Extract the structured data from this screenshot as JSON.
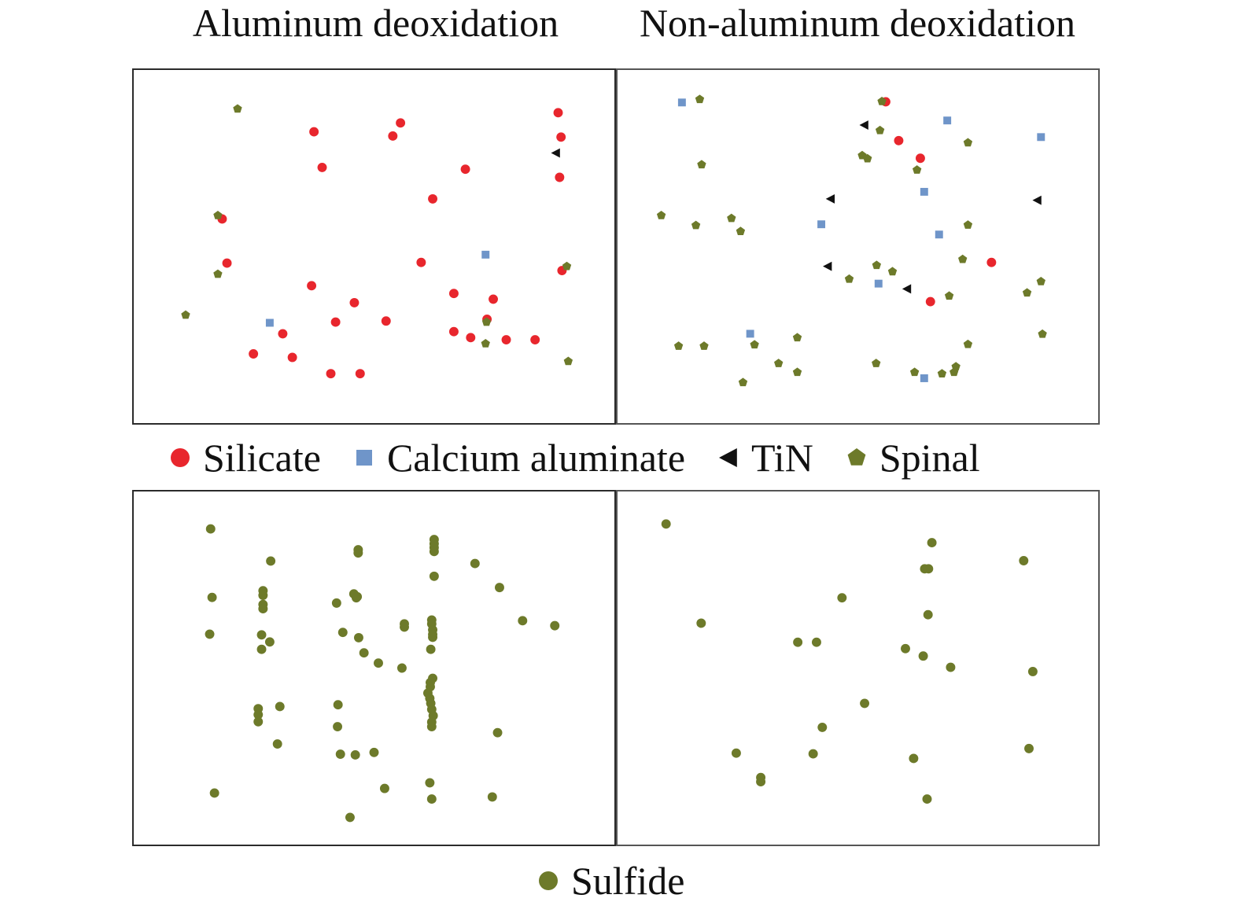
{
  "column_titles": {
    "left": "Aluminum deoxidation",
    "right": "Non-aluminum deoxidation"
  },
  "colors": {
    "silicate": "#e8262d",
    "calcium_aluminate": "#6f95c9",
    "tin": "#111111",
    "spinal": "#6d7a2a",
    "sulfide": "#6d7a2a"
  },
  "legend_top": [
    {
      "key": "silicate",
      "label": "Silicate",
      "shape": "circle"
    },
    {
      "key": "calcium_aluminate",
      "label": "Calcium aluminate",
      "shape": "square"
    },
    {
      "key": "tin",
      "label": "TiN",
      "shape": "triangle-left"
    },
    {
      "key": "spinal",
      "label": "Spinal",
      "shape": "pentagon"
    }
  ],
  "legend_bottom": [
    {
      "key": "sulfide",
      "label": "Sulfide",
      "shape": "circle"
    }
  ],
  "chart_data": [
    {
      "type": "scatter",
      "title": "Aluminum deoxidation",
      "xlim": [
        0,
        100
      ],
      "ylim": [
        0,
        100
      ],
      "grid": false,
      "axes_ticks": false,
      "series": [
        {
          "name": "Silicate",
          "key": "silicate",
          "points": [
            [
              37.5,
              17.5
            ],
            [
              39.2,
              27.6
            ],
            [
              55.5,
              15.0
            ],
            [
              53.9,
              18.7
            ],
            [
              69.0,
              28.1
            ],
            [
              62.2,
              36.5
            ],
            [
              88.3,
              12.1
            ],
            [
              88.9,
              19.0
            ],
            [
              88.6,
              30.4
            ],
            [
              18.4,
              42.2
            ],
            [
              19.4,
              54.7
            ],
            [
              37.0,
              61.1
            ],
            [
              59.8,
              54.5
            ],
            [
              66.6,
              63.3
            ],
            [
              89.1,
              56.8
            ],
            [
              45.9,
              65.9
            ],
            [
              42.0,
              71.4
            ],
            [
              52.5,
              71.1
            ],
            [
              31.0,
              74.7
            ],
            [
              24.9,
              80.4
            ],
            [
              33.0,
              81.4
            ],
            [
              41.0,
              86.0
            ],
            [
              47.1,
              86.0
            ],
            [
              66.6,
              74.1
            ],
            [
              73.5,
              70.6
            ],
            [
              74.8,
              64.9
            ],
            [
              70.1,
              75.8
            ],
            [
              77.5,
              76.4
            ],
            [
              83.5,
              76.4
            ]
          ]
        },
        {
          "name": "Calcium aluminate",
          "key": "calcium_aluminate",
          "points": [
            [
              73.2,
              52.3
            ],
            [
              28.3,
              71.6
            ]
          ]
        },
        {
          "name": "TiN",
          "key": "tin",
          "points": [
            [
              87.8,
              23.5
            ]
          ]
        },
        {
          "name": "Spinal",
          "key": "spinal",
          "points": [
            [
              21.6,
              11.0
            ],
            [
              17.5,
              41.2
            ],
            [
              17.5,
              57.8
            ],
            [
              10.8,
              69.4
            ],
            [
              90.1,
              55.6
            ],
            [
              73.4,
              71.4
            ],
            [
              73.2,
              77.5
            ],
            [
              90.4,
              82.5
            ]
          ]
        }
      ]
    },
    {
      "type": "scatter",
      "title": "Non-aluminum deoxidation",
      "xlim": [
        0,
        100
      ],
      "ylim": [
        0,
        100
      ],
      "grid": false,
      "axes_ticks": false,
      "series": [
        {
          "name": "Silicate",
          "key": "silicate",
          "points": [
            [
              55.8,
              9.0
            ],
            [
              58.5,
              20.0
            ],
            [
              63.0,
              25.0
            ],
            [
              77.8,
              54.5
            ],
            [
              65.1,
              65.6
            ]
          ]
        },
        {
          "name": "Calcium aluminate",
          "key": "calcium_aluminate",
          "points": [
            [
              13.4,
              9.2
            ],
            [
              68.6,
              14.3
            ],
            [
              88.1,
              19.0
            ],
            [
              63.8,
              34.5
            ],
            [
              42.4,
              43.7
            ],
            [
              66.9,
              46.6
            ],
            [
              54.3,
              60.5
            ],
            [
              27.6,
              74.7
            ],
            [
              63.8,
              87.3
            ]
          ]
        },
        {
          "name": "TiN",
          "key": "tin",
          "points": [
            [
              51.3,
              15.6
            ],
            [
              44.3,
              36.5
            ],
            [
              43.7,
              55.6
            ],
            [
              60.2,
              62.0
            ],
            [
              87.3,
              36.9
            ]
          ]
        },
        {
          "name": "Spinal",
          "key": "spinal",
          "points": [
            [
              17.1,
              8.3
            ],
            [
              55.0,
              8.9
            ],
            [
              54.6,
              17.1
            ],
            [
              72.9,
              20.6
            ],
            [
              50.9,
              24.2
            ],
            [
              52.0,
              25.1
            ],
            [
              62.3,
              28.3
            ],
            [
              17.5,
              26.8
            ],
            [
              9.1,
              41.2
            ],
            [
              16.3,
              44.0
            ],
            [
              25.6,
              45.7
            ],
            [
              23.7,
              42.0
            ],
            [
              72.9,
              43.9
            ],
            [
              71.8,
              53.6
            ],
            [
              53.9,
              55.3
            ],
            [
              57.2,
              57.1
            ],
            [
              48.2,
              59.2
            ],
            [
              69.0,
              64.0
            ],
            [
              85.2,
              63.1
            ],
            [
              88.1,
              59.9
            ],
            [
              12.7,
              78.2
            ],
            [
              18.0,
              78.2
            ],
            [
              28.5,
              77.8
            ],
            [
              37.4,
              75.8
            ],
            [
              33.5,
              83.1
            ],
            [
              37.4,
              85.6
            ],
            [
              26.1,
              88.5
            ],
            [
              53.8,
              83.1
            ],
            [
              61.8,
              85.6
            ],
            [
              67.5,
              86.0
            ],
            [
              70.0,
              85.6
            ],
            [
              70.4,
              84.0
            ],
            [
              72.9,
              77.7
            ],
            [
              88.4,
              74.8
            ]
          ]
        }
      ]
    },
    {
      "type": "scatter",
      "title": "",
      "xlim": [
        0,
        100
      ],
      "ylim": [
        0,
        100
      ],
      "grid": false,
      "axes_ticks": false,
      "series": [
        {
          "name": "Sulfide",
          "key": "sulfide",
          "points": [
            [
              16.0,
              10.6
            ],
            [
              28.5,
              19.7
            ],
            [
              46.7,
              16.5
            ],
            [
              46.7,
              17.4
            ],
            [
              62.5,
              13.6
            ],
            [
              62.5,
              14.8
            ],
            [
              62.5,
              15.9
            ],
            [
              62.5,
              17.0
            ],
            [
              62.5,
              24.0
            ],
            [
              71.0,
              20.4
            ],
            [
              76.1,
              27.2
            ],
            [
              16.3,
              30.0
            ],
            [
              26.9,
              28.1
            ],
            [
              26.9,
              29.4
            ],
            [
              26.9,
              32.0
            ],
            [
              26.9,
              33.2
            ],
            [
              45.8,
              29.0
            ],
            [
              46.3,
              30.1
            ],
            [
              46.5,
              29.8
            ],
            [
              42.2,
              31.6
            ],
            [
              15.8,
              40.4
            ],
            [
              26.6,
              40.6
            ],
            [
              26.6,
              44.7
            ],
            [
              28.3,
              42.6
            ],
            [
              43.5,
              39.9
            ],
            [
              46.8,
              41.4
            ],
            [
              47.9,
              45.7
            ],
            [
              50.9,
              48.6
            ],
            [
              56.3,
              37.5
            ],
            [
              56.3,
              38.4
            ],
            [
              62.0,
              36.4
            ],
            [
              62.0,
              37.5
            ],
            [
              62.2,
              39.2
            ],
            [
              62.2,
              40.5
            ],
            [
              62.2,
              41.3
            ],
            [
              61.8,
              44.7
            ],
            [
              55.8,
              50.0
            ],
            [
              80.9,
              36.6
            ],
            [
              87.6,
              38.0
            ],
            [
              62.2,
              52.9
            ],
            [
              61.7,
              54.1
            ],
            [
              61.7,
              55.3
            ],
            [
              61.2,
              57.1
            ],
            [
              61.6,
              58.6
            ],
            [
              61.8,
              60.0
            ],
            [
              62.0,
              61.7
            ],
            [
              62.3,
              63.5
            ],
            [
              62.0,
              65.3
            ],
            [
              62.0,
              66.6
            ],
            [
              25.9,
              61.5
            ],
            [
              25.9,
              63.2
            ],
            [
              25.9,
              65.2
            ],
            [
              30.4,
              60.9
            ],
            [
              42.5,
              60.4
            ],
            [
              42.4,
              66.6
            ],
            [
              29.9,
              71.5
            ],
            [
              43.0,
              74.4
            ],
            [
              46.1,
              74.6
            ],
            [
              50.0,
              73.9
            ],
            [
              75.7,
              68.3
            ],
            [
              16.8,
              85.4
            ],
            [
              52.2,
              84.1
            ],
            [
              61.6,
              82.5
            ],
            [
              62.0,
              87.1
            ],
            [
              74.6,
              86.5
            ],
            [
              45.0,
              92.3
            ]
          ]
        }
      ]
    },
    {
      "type": "scatter",
      "title": "",
      "xlim": [
        0,
        100
      ],
      "ylim": [
        0,
        100
      ],
      "grid": false,
      "axes_ticks": false,
      "series": [
        {
          "name": "Sulfide",
          "key": "sulfide",
          "points": [
            [
              10.1,
              9.2
            ],
            [
              65.4,
              14.5
            ],
            [
              84.5,
              19.6
            ],
            [
              63.9,
              21.9
            ],
            [
              64.7,
              21.9
            ],
            [
              46.7,
              30.1
            ],
            [
              64.6,
              34.9
            ],
            [
              17.4,
              37.3
            ],
            [
              37.5,
              42.7
            ],
            [
              41.4,
              42.7
            ],
            [
              59.9,
              44.5
            ],
            [
              63.6,
              46.6
            ],
            [
              69.3,
              49.8
            ],
            [
              86.4,
              51.0
            ],
            [
              51.4,
              60.0
            ],
            [
              42.6,
              66.8
            ],
            [
              24.7,
              74.1
            ],
            [
              40.7,
              74.3
            ],
            [
              61.6,
              75.6
            ],
            [
              85.6,
              72.8
            ],
            [
              29.8,
              81.0
            ],
            [
              29.8,
              82.2
            ],
            [
              64.4,
              87.1
            ]
          ]
        }
      ]
    }
  ]
}
